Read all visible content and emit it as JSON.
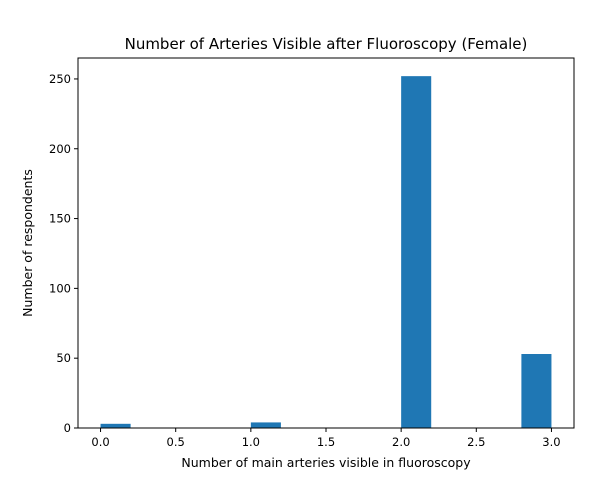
{
  "chart_data": {
    "type": "bar",
    "title": "Number of Arteries Visible after Fluoroscopy (Female)",
    "xlabel": "Number of main arteries visible in fluoroscopy",
    "ylabel": "Number of respondents",
    "xlim": [
      -0.15,
      3.15
    ],
    "ylim": [
      0,
      265
    ],
    "xticks": [
      0.0,
      0.5,
      1.0,
      1.5,
      2.0,
      2.5,
      3.0
    ],
    "xtick_labels": [
      "0.0",
      "0.5",
      "1.0",
      "1.5",
      "2.0",
      "2.5",
      "3.0"
    ],
    "yticks": [
      0,
      50,
      100,
      150,
      200,
      250
    ],
    "ytick_labels": [
      "0",
      "50",
      "100",
      "150",
      "200",
      "250"
    ],
    "bins": [
      {
        "x_start": 0.0,
        "x_end": 0.2,
        "value": 3
      },
      {
        "x_start": 0.2,
        "x_end": 0.4,
        "value": 0
      },
      {
        "x_start": 0.4,
        "x_end": 0.6,
        "value": 0
      },
      {
        "x_start": 0.6,
        "x_end": 0.8,
        "value": 0
      },
      {
        "x_start": 0.8,
        "x_end": 1.0,
        "value": 0
      },
      {
        "x_start": 1.0,
        "x_end": 1.2,
        "value": 4
      },
      {
        "x_start": 1.2,
        "x_end": 1.4,
        "value": 0
      },
      {
        "x_start": 1.4,
        "x_end": 1.6,
        "value": 0
      },
      {
        "x_start": 1.6,
        "x_end": 1.8,
        "value": 0
      },
      {
        "x_start": 1.8,
        "x_end": 2.0,
        "value": 0
      },
      {
        "x_start": 2.0,
        "x_end": 2.2,
        "value": 252
      },
      {
        "x_start": 2.2,
        "x_end": 2.4,
        "value": 0
      },
      {
        "x_start": 2.4,
        "x_end": 2.6,
        "value": 0
      },
      {
        "x_start": 2.6,
        "x_end": 2.8,
        "value": 0
      },
      {
        "x_start": 2.8,
        "x_end": 3.0,
        "value": 53
      }
    ],
    "bar_color": "#1f77b4",
    "grid": false,
    "legend": "none"
  }
}
